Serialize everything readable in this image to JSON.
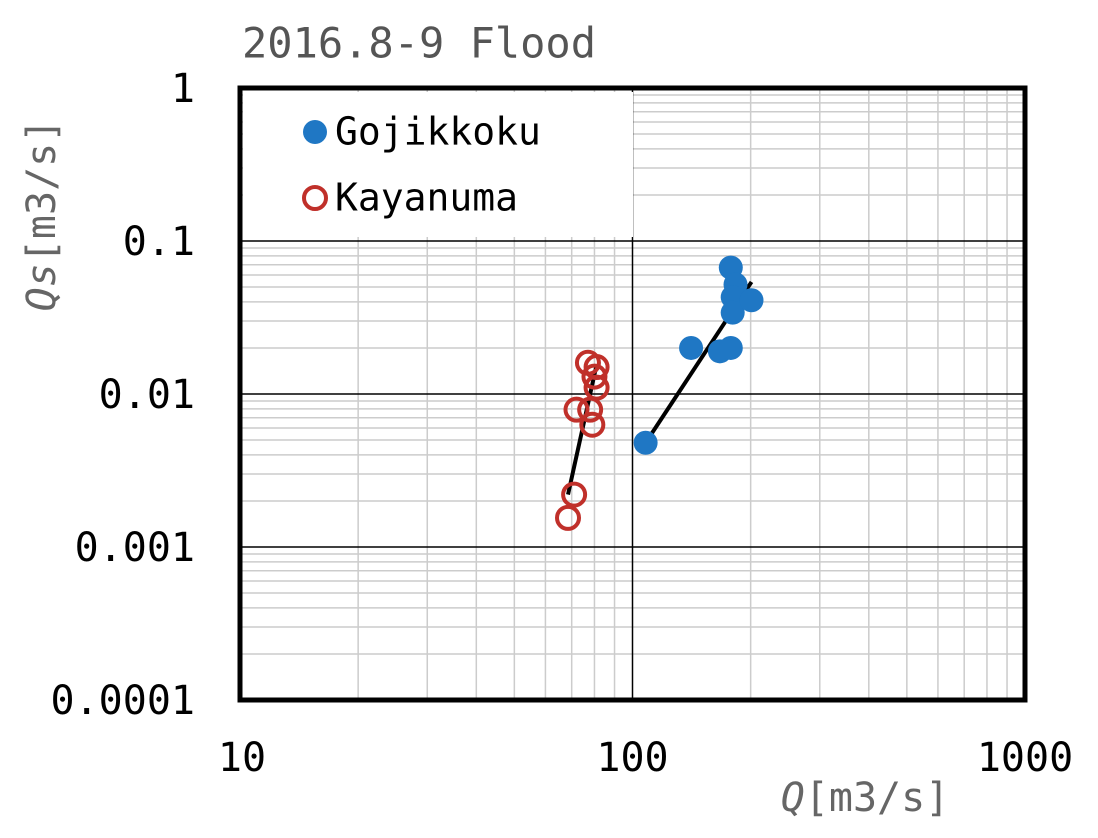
{
  "chart_data": {
    "type": "scatter",
    "title": "2016.8-9 Flood",
    "xlabel_symbol": "Q",
    "xlabel_unit": "[m3/s]",
    "ylabel_symbol": "Qs",
    "ylabel_unit": "[m3/s]",
    "xscale": "log",
    "yscale": "log",
    "xlim": [
      10,
      1000
    ],
    "ylim": [
      0.0001,
      1
    ],
    "xticks": [
      10,
      100,
      1000
    ],
    "yticks": [
      0.0001,
      0.001,
      0.01,
      0.1,
      1
    ],
    "grid": true,
    "legend": "upper left",
    "series": [
      {
        "name": "Gojikkoku",
        "color": "#1f77c4",
        "filled": true,
        "x": [
          108,
          141,
          167,
          178,
          178,
          183,
          180,
          180,
          201
        ],
        "values": [
          0.0048,
          0.02,
          0.019,
          0.02,
          0.067,
          0.052,
          0.043,
          0.034,
          0.041
        ],
        "trend_x": [
          108,
          201
        ],
        "trend_values": [
          0.0048,
          0.054
        ]
      },
      {
        "name": "Kayanuma",
        "color": "#c0302a",
        "filled": false,
        "x": [
          68.5,
          71,
          72,
          77,
          81,
          81,
          78,
          79,
          80
        ],
        "values": [
          0.00155,
          0.0022,
          0.0079,
          0.016,
          0.015,
          0.011,
          0.0079,
          0.0063,
          0.013
        ],
        "trend_x": [
          68.5,
          81
        ],
        "trend_values": [
          0.0022,
          0.0155
        ]
      }
    ]
  }
}
